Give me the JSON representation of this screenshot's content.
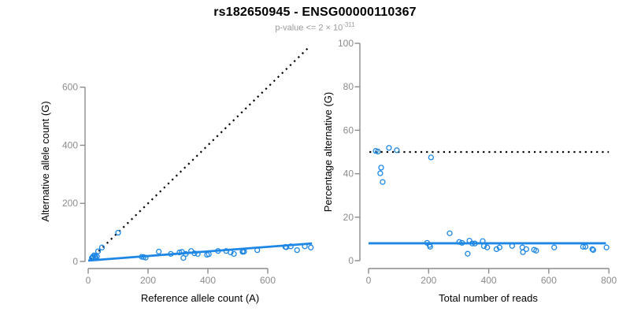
{
  "header": {
    "title": "rs182650945 - ENSG00000110367",
    "subtitle": {
      "text": "p-value <= 2 × 10",
      "exponent": "-311"
    }
  },
  "colors": {
    "accent_blue": "#1E87E5",
    "dashed_black": "#000000",
    "axis_gray": "#8c8c8c",
    "tick_label_gray": "#8c8c8c",
    "subtitle_gray": "#9a9a9a"
  },
  "chart_data": [
    {
      "id": "allele-count-scatter",
      "type": "scatter",
      "xlabel": "Reference allele count (A)",
      "ylabel": "Alternative allele count (G)",
      "xlim": [
        0,
        750
      ],
      "ylim": [
        0,
        770
      ],
      "xticks": [
        0,
        200,
        400,
        600
      ],
      "yticks": [
        0,
        200,
        400,
        600
      ],
      "points": [
        [
          12,
          12
        ],
        [
          14,
          13
        ],
        [
          16,
          17
        ],
        [
          20,
          21
        ],
        [
          33,
          35
        ],
        [
          46,
          48
        ],
        [
          100,
          99
        ],
        [
          23,
          17
        ],
        [
          24,
          15
        ],
        [
          29,
          17
        ],
        [
          179,
          16
        ],
        [
          185,
          15
        ],
        [
          192,
          13
        ],
        [
          236,
          34
        ],
        [
          276,
          26
        ],
        [
          305,
          31
        ],
        [
          313,
          33
        ],
        [
          318,
          12
        ],
        [
          326,
          26
        ],
        [
          344,
          36
        ],
        [
          355,
          28
        ],
        [
          366,
          26
        ],
        [
          397,
          23
        ],
        [
          403,
          25
        ],
        [
          434,
          36
        ],
        [
          461,
          36
        ],
        [
          476,
          31
        ],
        [
          487,
          26
        ],
        [
          516,
          33
        ],
        [
          517,
          36
        ],
        [
          521,
          34
        ],
        [
          565,
          39
        ],
        [
          659,
          50
        ],
        [
          662,
          49
        ],
        [
          677,
          52
        ],
        [
          698,
          39
        ],
        [
          724,
          52
        ],
        [
          744,
          48
        ]
      ],
      "lines": [
        {
          "name": "identity-line",
          "style": "dashed",
          "color": "#000000",
          "points": [
            [
              8,
              8
            ],
            [
              735,
              735
            ]
          ]
        },
        {
          "name": "fit-line",
          "style": "solid",
          "color": "#1E87E5",
          "points": [
            [
              0,
              3
            ],
            [
              748,
              62
            ]
          ]
        }
      ]
    },
    {
      "id": "percentage-scatter",
      "type": "scatter",
      "xlabel": "Total number of reads",
      "ylabel": "Percentage alternative (G)",
      "xlim": [
        0,
        810
      ],
      "ylim": [
        0,
        100
      ],
      "xticks": [
        0,
        200,
        400,
        600,
        800
      ],
      "yticks": [
        0,
        20,
        40,
        60,
        80,
        100
      ],
      "points": [
        [
          24,
          50.5
        ],
        [
          31,
          50.2
        ],
        [
          68,
          51.9
        ],
        [
          94,
          50.8
        ],
        [
          208,
          47.5
        ],
        [
          42,
          42.8
        ],
        [
          39,
          40.2
        ],
        [
          47,
          36.2
        ],
        [
          195,
          8.2
        ],
        [
          203,
          7.2
        ],
        [
          205,
          6.4
        ],
        [
          270,
          12.6
        ],
        [
          302,
          8.6
        ],
        [
          311,
          8.2
        ],
        [
          336,
          9.2
        ],
        [
          345,
          7.9
        ],
        [
          354,
          7.9
        ],
        [
          330,
          3.2
        ],
        [
          380,
          9.0
        ],
        [
          384,
          6.7
        ],
        [
          395,
          6.1
        ],
        [
          426,
          5.3
        ],
        [
          436,
          6.1
        ],
        [
          478,
          6.8
        ],
        [
          512,
          6.1
        ],
        [
          514,
          3.9
        ],
        [
          525,
          5.3
        ],
        [
          551,
          5.0
        ],
        [
          558,
          4.6
        ],
        [
          618,
          6.1
        ],
        [
          714,
          6.4
        ],
        [
          722,
          6.4
        ],
        [
          745,
          5.3
        ],
        [
          748,
          4.9
        ],
        [
          792,
          6.1
        ]
      ],
      "lines": [
        {
          "name": "null-50pct-line",
          "style": "dashed",
          "color": "#000000",
          "points": [
            [
              3,
              50
            ],
            [
              800,
              50
            ]
          ]
        },
        {
          "name": "mean-pct-line",
          "style": "solid",
          "color": "#1E87E5",
          "points": [
            [
              0,
              8
            ],
            [
              790,
              8
            ]
          ]
        }
      ]
    }
  ]
}
